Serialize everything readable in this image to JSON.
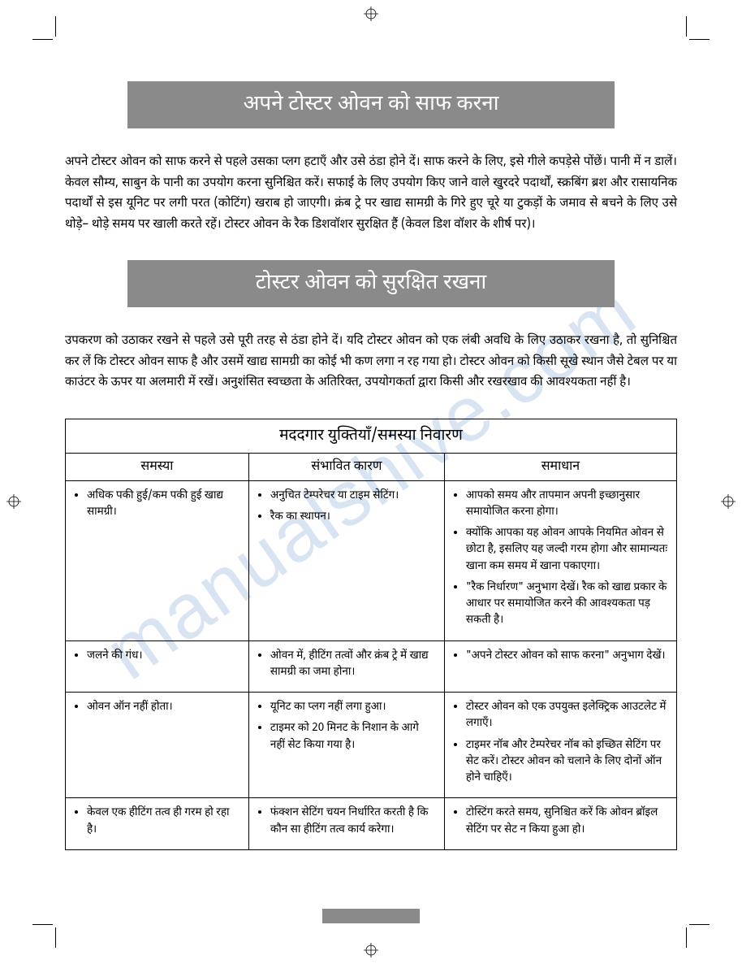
{
  "watermark": "manualshive.com",
  "section1": {
    "title": "अपने टोस्टर ओवन को साफ करना",
    "body": "अपने टोस्टर ओवन को साफ करने से पहले उसका प्लग हटाएँ और उसे ठंडा होने दें। साफ करने के लिए, इसे गीले कपड़ेसे पोंछें। पानी में न डालें। केवल सौम्य, साबुन के पानी का उपयोग करना सुनिश्चित करें। सफाई के लिए उपयोग किए जाने वाले खुरदरे पदार्थों, स्क्रबिंग ब्रश और रासायनिक पदार्थों से इस यूनिट पर लगी परत (कोटिंग) खराब हो जाएगी। क्रंब ट्रे पर खाद्य सामग्री के गिरे हुए चूरे या टुकड़ों के जमाव से बचने के लिए उसे थोड़े– थोड़े समय पर खाली करते रहें। टोस्टर ओवन के रैक डिशवॉशर सुरक्षित हैं (केवल डिश वॉशर के शीर्ष पर)।"
  },
  "section2": {
    "title": "टोस्टर ओवन को सुरक्षित रखना",
    "body": "उपकरण को उठाकर रखने से पहले उसे पूरी तरह से ठंडा होने दें। यदि टोस्टर ओवन को एक लंबी अवधि के लिए उठाकर रखना है, तो सुनिश्चित कर लें कि टोस्टर ओवन साफ है और उसमें खाद्य सामग्री का कोई भी कण लगा न रह गया हो। टोस्टर ओवन को किसी सूखे स्थान जैसे टेबल पर या काउंटर के ऊपर या अलमारी में रखें। अनुशंसित स्वच्छता के अतिरिक्त, उपयोगकर्ता द्वारा किसी और रखरखाव की आवश्यकता नहीं है।"
  },
  "table": {
    "title": "मददगार युक्तियाँ/समस्या निवारण",
    "headers": {
      "problem": "समस्या",
      "cause": "संभावित कारण",
      "solution": "समाधान"
    },
    "rows": [
      {
        "problem": [
          "अधिक पकी हुई/कम पकी हुई खाद्य सामग्री।"
        ],
        "cause": [
          "अनुचित टेम्परेचर या टाइम सेटिंग।",
          "रैक का स्थापन।"
        ],
        "solution": [
          "आपको समय और तापमान अपनी इच्छानुसार समायोजित करना होगा।",
          "क्योंकि आपका यह ओवन आपके नियमित ओवन से छोटा है, इसलिए यह जल्दी गरम होगा  और सामान्यतः खाना कम समय में खाना पकाएगा।",
          "\"रैक निर्धारण\" अनुभाग देखें। रैक को खाद्य प्रकार के आधार पर समायोजित करने की आवश्यकता पड़ सकती है।"
        ]
      },
      {
        "problem": [
          "जलने की गंध।"
        ],
        "cause": [
          "ओवन में, हीटिंग तत्वों और क्रंब ट्रे में खाद्य सामग्री का जमा होना।"
        ],
        "solution": [
          "\"अपने टोस्टर ओवन को साफ करना\" अनुभाग देखें।"
        ]
      },
      {
        "problem": [
          "ओवन ऑन नहीं होता।"
        ],
        "cause": [
          "यूनिट का प्लग नहीं लगा हुआ।",
          "टाइमर को 20 मिनट के निशान के आगे नहीं सेट किया गया है।"
        ],
        "solution": [
          "टोस्टर ओवन को एक उपयुक्त इलेक्ट्रिक आउटलेट में लगाएँ।",
          "टाइमर नॉब और टेम्परेचर नॉब को इच्छित सेटिंग पर सेट करें। टोस्टर ओवन को चलाने के लिए दोनों ऑन होने चाहिएँ।"
        ]
      },
      {
        "problem": [
          "केवल एक हीटिंग तत्व ही गरम हो रहा है।"
        ],
        "cause": [
          "फंक्शन सेटिंग चयन निर्धारित करती है कि कौन सा हीटिंग तत्व कार्य करेगा।"
        ],
        "solution": [
          "टोस्टिंग करते समय, सुनिश्चित करें कि ओवन ब्रॉइल सेटिंग पर सेट न किया हुआ हो।"
        ]
      }
    ]
  }
}
